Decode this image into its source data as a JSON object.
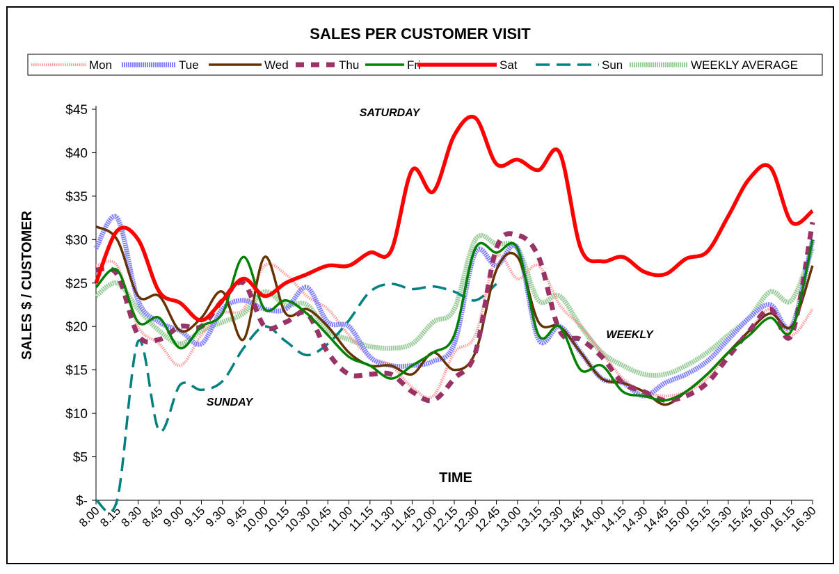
{
  "chart_data": {
    "type": "line",
    "title": "SALES PER CUSTOMER VISIT",
    "x_label": "TIME",
    "y_label": "SALES $ / CUSTOMER",
    "annotations": [
      "SATURDAY",
      "WEEKLY",
      "SUNDAY"
    ],
    "categories": [
      "8.00",
      "8.15",
      "8.30",
      "8.45",
      "9.00",
      "9.15",
      "9.30",
      "9.45",
      "10.00",
      "10.15",
      "10.30",
      "10.45",
      "11.00",
      "11.15",
      "11.30",
      "11.45",
      "12.00",
      "12.15",
      "12.30",
      "12.45",
      "13.00",
      "13.15",
      "13.30",
      "13.45",
      "14.00",
      "14.15",
      "14.30",
      "14.45",
      "15.00",
      "15.15",
      "15.30",
      "15.45",
      "16.00",
      "16.15",
      "16.30"
    ],
    "ylim": [
      0,
      45
    ],
    "yticks": [
      {
        "value": 0,
        "label": "$-"
      },
      {
        "value": 5,
        "label": "$5"
      },
      {
        "value": 10,
        "label": "$10"
      },
      {
        "value": 15,
        "label": "$15"
      },
      {
        "value": 20,
        "label": "$20"
      },
      {
        "value": 25,
        "label": "$25"
      },
      {
        "value": 30,
        "label": "$30"
      },
      {
        "value": 35,
        "label": "$35"
      },
      {
        "value": 40,
        "label": "$40"
      },
      {
        "value": 45,
        "label": "$45"
      }
    ],
    "series": [
      {
        "name": "Mon",
        "color": "#ff9999",
        "style": "dotted",
        "values": [
          27,
          27,
          20,
          18,
          15.5,
          19,
          21.5,
          22,
          27,
          26,
          23.5,
          22,
          19,
          16.5,
          15.5,
          13,
          12,
          17,
          19,
          28,
          25.5,
          27,
          22.5,
          20,
          17,
          14,
          12.5,
          12,
          12.5,
          14,
          17,
          19.5,
          22,
          19,
          22
        ]
      },
      {
        "name": "Tue",
        "color": "#8080ff",
        "style": "thick",
        "values": [
          29,
          32.5,
          23,
          20.5,
          19.5,
          18,
          22,
          23,
          22,
          22,
          24.5,
          20.5,
          20,
          16.5,
          15.5,
          15.5,
          16,
          18,
          28.5,
          27,
          29,
          18.5,
          20,
          17,
          14,
          13.5,
          12,
          13.5,
          14.5,
          16,
          18.5,
          21,
          22.5,
          20,
          30
        ]
      },
      {
        "name": "Wed",
        "color": "#663300",
        "style": "solid",
        "values": [
          31.5,
          30,
          23.5,
          23.5,
          19.5,
          21,
          24,
          18.5,
          28,
          21.5,
          22,
          20,
          17,
          15.5,
          15.5,
          14.5,
          17,
          15,
          17,
          26.5,
          28,
          20.5,
          20,
          17,
          14,
          13.5,
          12.5,
          11,
          12.5,
          14.5,
          17,
          19.5,
          21.5,
          20,
          27
        ]
      },
      {
        "name": "Thu",
        "color": "#993366",
        "style": "dashed",
        "values": [
          26.5,
          26,
          19,
          18.5,
          20,
          20,
          23,
          25,
          20,
          20.5,
          21.5,
          17,
          14.5,
          14.5,
          14.5,
          12.5,
          11.5,
          14,
          17,
          29,
          30.5,
          28,
          19.5,
          18.5,
          16.5,
          13.5,
          12.5,
          11.5,
          12,
          13.5,
          16.5,
          19.5,
          22,
          19,
          32
        ]
      },
      {
        "name": "Fri",
        "color": "#008000",
        "style": "solid",
        "values": [
          24.5,
          26.5,
          20.5,
          21,
          17.5,
          20,
          21.5,
          28,
          22,
          23,
          21.5,
          19,
          16.5,
          15.5,
          14,
          15.5,
          17,
          19,
          29,
          28.5,
          29,
          19,
          20,
          15,
          15.5,
          12.5,
          12,
          11.5,
          12.5,
          14.5,
          17,
          19,
          21,
          19.5,
          30
        ]
      },
      {
        "name": "Sat",
        "color": "#ff0000",
        "style": "heavy",
        "values": [
          25,
          31,
          30,
          24,
          22.7,
          20.7,
          23,
          25.5,
          23.5,
          25,
          26,
          27,
          27,
          28.5,
          28.7,
          38,
          35.5,
          42,
          44,
          38.7,
          39.2,
          38,
          40,
          29,
          27.5,
          28,
          26.3,
          26,
          27.8,
          28.6,
          32.7,
          37,
          38.3,
          32,
          33.3
        ]
      },
      {
        "name": "Sun",
        "color": "#008080",
        "style": "longdash",
        "values": [
          0,
          0,
          18.3,
          8,
          13.3,
          12.7,
          13.7,
          17.5,
          20,
          18.3,
          16.7,
          18,
          20.7,
          24,
          24.9,
          24.3,
          24.6,
          24,
          23,
          24.9,
          null,
          null,
          null,
          null,
          null,
          null,
          null,
          null,
          null,
          null,
          null,
          null,
          null,
          null,
          null
        ]
      },
      {
        "name": "WEEKLY AVERAGE",
        "color": "#99cc99",
        "style": "wide",
        "values": [
          23.5,
          25,
          22,
          19.5,
          18,
          19.5,
          20.5,
          21.5,
          24,
          22.5,
          22.5,
          19.5,
          18.5,
          17.7,
          17.5,
          18,
          20.5,
          22,
          30,
          29.5,
          29,
          23,
          23.5,
          20,
          17,
          15.5,
          14.5,
          14.5,
          15.5,
          17,
          19,
          21,
          24,
          23,
          29
        ]
      }
    ]
  }
}
